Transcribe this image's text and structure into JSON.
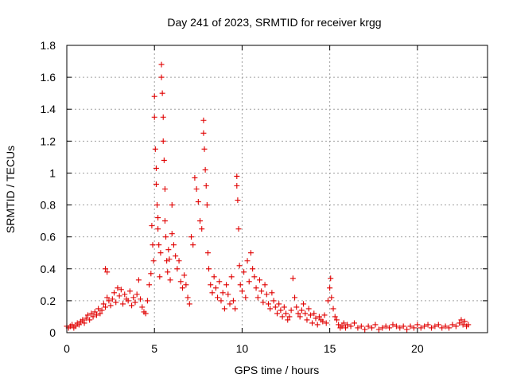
{
  "chart_data": {
    "type": "scatter",
    "title": "Day 241 of 2023, SRMTID for receiver krgg",
    "xlabel": "GPS time / hours",
    "ylabel": "SRMTID / TECUs",
    "xlim": [
      0,
      24
    ],
    "ylim": [
      0,
      1.8
    ],
    "xticks": [
      0,
      5,
      10,
      15,
      20
    ],
    "yticks": [
      0,
      0.2,
      0.4,
      0.6,
      0.8,
      1,
      1.2,
      1.4,
      1.6,
      1.8
    ],
    "xtick_labels": [
      "0",
      "5",
      "10",
      "15",
      "20"
    ],
    "ytick_labels": [
      "0",
      "0.2",
      "0.4",
      "0.6",
      "0.8",
      "1",
      "1.2",
      "1.4",
      "1.6",
      "1.8"
    ],
    "grid": true,
    "marker": "+",
    "color": "#e00000",
    "series": [
      {
        "name": "SRMTID",
        "points": [
          [
            0.0,
            0.04
          ],
          [
            0.1,
            0.03
          ],
          [
            0.2,
            0.04
          ],
          [
            0.3,
            0.05
          ],
          [
            0.4,
            0.03
          ],
          [
            0.5,
            0.04
          ],
          [
            0.6,
            0.06
          ],
          [
            0.7,
            0.05
          ],
          [
            0.8,
            0.07
          ],
          [
            0.9,
            0.08
          ],
          [
            1.0,
            0.06
          ],
          [
            1.1,
            0.09
          ],
          [
            1.2,
            0.11
          ],
          [
            1.3,
            0.08
          ],
          [
            1.4,
            0.12
          ],
          [
            1.5,
            0.1
          ],
          [
            1.6,
            0.13
          ],
          [
            1.7,
            0.11
          ],
          [
            1.8,
            0.15
          ],
          [
            1.9,
            0.12
          ],
          [
            2.0,
            0.14
          ],
          [
            2.1,
            0.18
          ],
          [
            2.2,
            0.16
          ],
          [
            2.3,
            0.22
          ],
          [
            2.2,
            0.4
          ],
          [
            2.3,
            0.38
          ],
          [
            2.4,
            0.2
          ],
          [
            2.5,
            0.17
          ],
          [
            2.6,
            0.21
          ],
          [
            2.7,
            0.25
          ],
          [
            2.8,
            0.19
          ],
          [
            2.9,
            0.28
          ],
          [
            3.0,
            0.23
          ],
          [
            3.1,
            0.27
          ],
          [
            3.2,
            0.18
          ],
          [
            3.3,
            0.24
          ],
          [
            3.4,
            0.21
          ],
          [
            3.5,
            0.2
          ],
          [
            3.6,
            0.26
          ],
          [
            3.7,
            0.17
          ],
          [
            3.8,
            0.22
          ],
          [
            3.9,
            0.19
          ],
          [
            4.0,
            0.24
          ],
          [
            4.1,
            0.33
          ],
          [
            4.2,
            0.21
          ],
          [
            4.3,
            0.16
          ],
          [
            4.4,
            0.13
          ],
          [
            4.5,
            0.12
          ],
          [
            4.6,
            0.2
          ],
          [
            4.7,
            0.3
          ],
          [
            4.8,
            0.37
          ],
          [
            4.85,
            0.67
          ],
          [
            4.9,
            0.55
          ],
          [
            4.95,
            0.45
          ],
          [
            5.0,
            1.48
          ],
          [
            5.0,
            1.35
          ],
          [
            5.05,
            1.15
          ],
          [
            5.1,
            0.93
          ],
          [
            5.1,
            1.03
          ],
          [
            5.15,
            0.8
          ],
          [
            5.2,
            0.65
          ],
          [
            5.2,
            0.72
          ],
          [
            5.25,
            0.55
          ],
          [
            5.3,
            0.35
          ],
          [
            5.35,
            0.5
          ],
          [
            5.4,
            1.68
          ],
          [
            5.4,
            1.6
          ],
          [
            5.45,
            1.5
          ],
          [
            5.5,
            1.35
          ],
          [
            5.5,
            1.2
          ],
          [
            5.55,
            1.08
          ],
          [
            5.6,
            0.9
          ],
          [
            5.6,
            0.7
          ],
          [
            5.65,
            0.6
          ],
          [
            5.7,
            0.45
          ],
          [
            5.75,
            0.38
          ],
          [
            5.8,
            0.52
          ],
          [
            5.85,
            0.46
          ],
          [
            5.9,
            0.33
          ],
          [
            6.0,
            0.8
          ],
          [
            6.0,
            0.62
          ],
          [
            6.1,
            0.55
          ],
          [
            6.2,
            0.48
          ],
          [
            6.3,
            0.4
          ],
          [
            6.4,
            0.45
          ],
          [
            6.5,
            0.32
          ],
          [
            6.6,
            0.28
          ],
          [
            6.7,
            0.36
          ],
          [
            6.8,
            0.3
          ],
          [
            6.9,
            0.22
          ],
          [
            7.0,
            0.18
          ],
          [
            7.1,
            0.6
          ],
          [
            7.2,
            0.55
          ],
          [
            7.3,
            0.97
          ],
          [
            7.4,
            0.9
          ],
          [
            7.5,
            0.82
          ],
          [
            7.6,
            0.7
          ],
          [
            7.7,
            0.65
          ],
          [
            7.8,
            1.33
          ],
          [
            7.8,
            1.25
          ],
          [
            7.85,
            1.15
          ],
          [
            7.9,
            1.02
          ],
          [
            7.95,
            0.92
          ],
          [
            8.0,
            0.8
          ],
          [
            8.05,
            0.5
          ],
          [
            8.1,
            0.4
          ],
          [
            8.2,
            0.3
          ],
          [
            8.3,
            0.25
          ],
          [
            8.4,
            0.35
          ],
          [
            8.5,
            0.28
          ],
          [
            8.6,
            0.22
          ],
          [
            8.7,
            0.32
          ],
          [
            8.8,
            0.2
          ],
          [
            8.9,
            0.25
          ],
          [
            9.0,
            0.15
          ],
          [
            9.1,
            0.3
          ],
          [
            9.2,
            0.24
          ],
          [
            9.3,
            0.18
          ],
          [
            9.4,
            0.35
          ],
          [
            9.5,
            0.2
          ],
          [
            9.6,
            0.15
          ],
          [
            9.7,
            0.98
          ],
          [
            9.7,
            0.92
          ],
          [
            9.75,
            0.83
          ],
          [
            9.8,
            0.65
          ],
          [
            9.85,
            0.42
          ],
          [
            9.9,
            0.3
          ],
          [
            10.0,
            0.26
          ],
          [
            10.1,
            0.38
          ],
          [
            10.2,
            0.22
          ],
          [
            10.3,
            0.45
          ],
          [
            10.4,
            0.32
          ],
          [
            10.5,
            0.5
          ],
          [
            10.6,
            0.4
          ],
          [
            10.7,
            0.35
          ],
          [
            10.8,
            0.28
          ],
          [
            10.9,
            0.22
          ],
          [
            11.0,
            0.33
          ],
          [
            11.1,
            0.26
          ],
          [
            11.2,
            0.19
          ],
          [
            11.3,
            0.3
          ],
          [
            11.4,
            0.24
          ],
          [
            11.5,
            0.18
          ],
          [
            11.6,
            0.15
          ],
          [
            11.7,
            0.25
          ],
          [
            11.8,
            0.2
          ],
          [
            11.9,
            0.16
          ],
          [
            12.0,
            0.12
          ],
          [
            12.1,
            0.18
          ],
          [
            12.2,
            0.14
          ],
          [
            12.3,
            0.1
          ],
          [
            12.4,
            0.16
          ],
          [
            12.5,
            0.12
          ],
          [
            12.6,
            0.08
          ],
          [
            12.7,
            0.1
          ],
          [
            12.8,
            0.14
          ],
          [
            12.9,
            0.34
          ],
          [
            13.0,
            0.22
          ],
          [
            13.1,
            0.16
          ],
          [
            13.2,
            0.12
          ],
          [
            13.3,
            0.1
          ],
          [
            13.4,
            0.14
          ],
          [
            13.5,
            0.18
          ],
          [
            13.6,
            0.12
          ],
          [
            13.7,
            0.08
          ],
          [
            13.8,
            0.15
          ],
          [
            13.9,
            0.11
          ],
          [
            14.0,
            0.06
          ],
          [
            14.1,
            0.12
          ],
          [
            14.2,
            0.09
          ],
          [
            14.3,
            0.05
          ],
          [
            14.4,
            0.1
          ],
          [
            14.5,
            0.08
          ],
          [
            14.6,
            0.07
          ],
          [
            14.7,
            0.11
          ],
          [
            14.8,
            0.06
          ],
          [
            14.9,
            0.2
          ],
          [
            15.0,
            0.28
          ],
          [
            15.05,
            0.34
          ],
          [
            15.1,
            0.22
          ],
          [
            15.2,
            0.15
          ],
          [
            15.3,
            0.1
          ],
          [
            15.4,
            0.08
          ],
          [
            15.5,
            0.05
          ],
          [
            15.6,
            0.03
          ],
          [
            15.7,
            0.04
          ],
          [
            15.8,
            0.06
          ],
          [
            15.9,
            0.03
          ],
          [
            16.0,
            0.05
          ],
          [
            16.2,
            0.04
          ],
          [
            16.4,
            0.06
          ],
          [
            16.6,
            0.03
          ],
          [
            16.8,
            0.04
          ],
          [
            17.0,
            0.02
          ],
          [
            17.2,
            0.04
          ],
          [
            17.4,
            0.03
          ],
          [
            17.6,
            0.05
          ],
          [
            17.8,
            0.02
          ],
          [
            18.0,
            0.03
          ],
          [
            18.2,
            0.04
          ],
          [
            18.4,
            0.03
          ],
          [
            18.6,
            0.05
          ],
          [
            18.8,
            0.04
          ],
          [
            19.0,
            0.03
          ],
          [
            19.2,
            0.04
          ],
          [
            19.4,
            0.02
          ],
          [
            19.6,
            0.04
          ],
          [
            19.8,
            0.03
          ],
          [
            20.0,
            0.05
          ],
          [
            20.2,
            0.03
          ],
          [
            20.4,
            0.04
          ],
          [
            20.6,
            0.05
          ],
          [
            20.8,
            0.03
          ],
          [
            21.0,
            0.04
          ],
          [
            21.2,
            0.05
          ],
          [
            21.4,
            0.03
          ],
          [
            21.6,
            0.04
          ],
          [
            21.8,
            0.03
          ],
          [
            22.0,
            0.05
          ],
          [
            22.2,
            0.04
          ],
          [
            22.4,
            0.06
          ],
          [
            22.5,
            0.08
          ],
          [
            22.6,
            0.05
          ],
          [
            22.7,
            0.07
          ],
          [
            22.8,
            0.04
          ],
          [
            22.9,
            0.05
          ]
        ]
      }
    ]
  }
}
